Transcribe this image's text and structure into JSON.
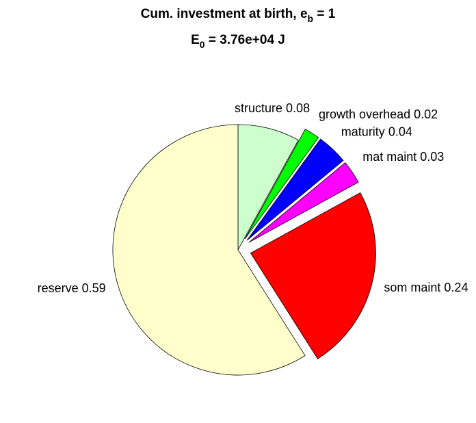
{
  "chart_data": {
    "type": "pie",
    "title": [
      "Cum. investment at birth, e",
      "b",
      " = 1"
    ],
    "subtitle": [
      "E",
      "0",
      " = 3.76e+04 J"
    ],
    "categories": [
      "structure",
      "growth overhead",
      "maturity",
      "mat maint",
      "som maint",
      "reserve"
    ],
    "values": [
      0.08,
      0.02,
      0.04,
      0.03,
      0.24,
      0.59
    ],
    "colors": [
      "#ccffcc",
      "#00ff00",
      "#0000ff",
      "#ff00ff",
      "#ff0000",
      "#ffffcc"
    ],
    "explode": [
      false,
      true,
      true,
      true,
      true,
      false
    ]
  }
}
